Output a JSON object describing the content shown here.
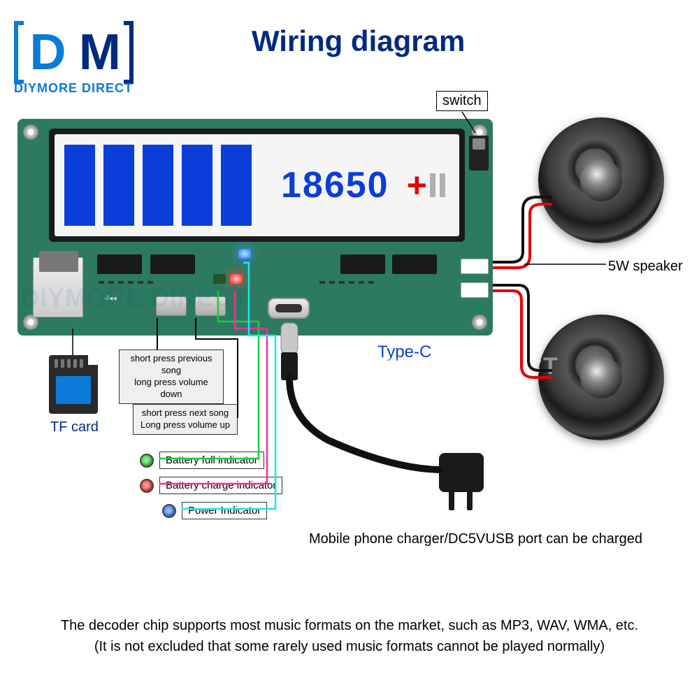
{
  "logo": {
    "d": "D",
    "m": "M",
    "sub": "DIYMORE DIRECT",
    "bracket_color": "#0b7ad8",
    "d_color": "#0b7ad8",
    "m_color": "#012a80",
    "sub_color": "#0b7ad8"
  },
  "title": "Wiring diagram",
  "lcd": {
    "bars": 5,
    "bar_color": "#0b3dd8",
    "text": "18650",
    "plus": "+",
    "bg": "#f5f5f5"
  },
  "switch_label": "switch",
  "speaker_label": "5W speaker",
  "typec_label": "Type-C",
  "tf_label": "TF card",
  "charger_label": "Mobile phone charger/DC5VUSB port can be charged",
  "btn_prev_note": "short press previous song\nlong press volume down",
  "btn_next_note": "short press next song\nLong press volume up",
  "indicators": {
    "full": {
      "label": "Battery full indicator",
      "color": "#1ecc3a"
    },
    "charge": {
      "label": "Battery charge indicator",
      "color": "#ff1a1a"
    },
    "power": {
      "label": "Power Indicator",
      "color": "#2a6cff"
    }
  },
  "footer_l1": "The decoder chip supports most music formats on the market, such as MP3, WAV, WMA, etc.",
  "footer_l2": "(It is not excluded that some rarely used music formats cannot be played normally)",
  "watermark": "DIYMORE DIRECT",
  "colors": {
    "pcb": "#2c7a5f",
    "wire_red": "#e60000",
    "wire_black": "#111111",
    "wire_green": "#1ecc3a",
    "wire_cyan": "#18e8f0",
    "wire_pink": "#ff2aa0",
    "wire_blue": "#0a4ee6",
    "title": "#012a80"
  }
}
